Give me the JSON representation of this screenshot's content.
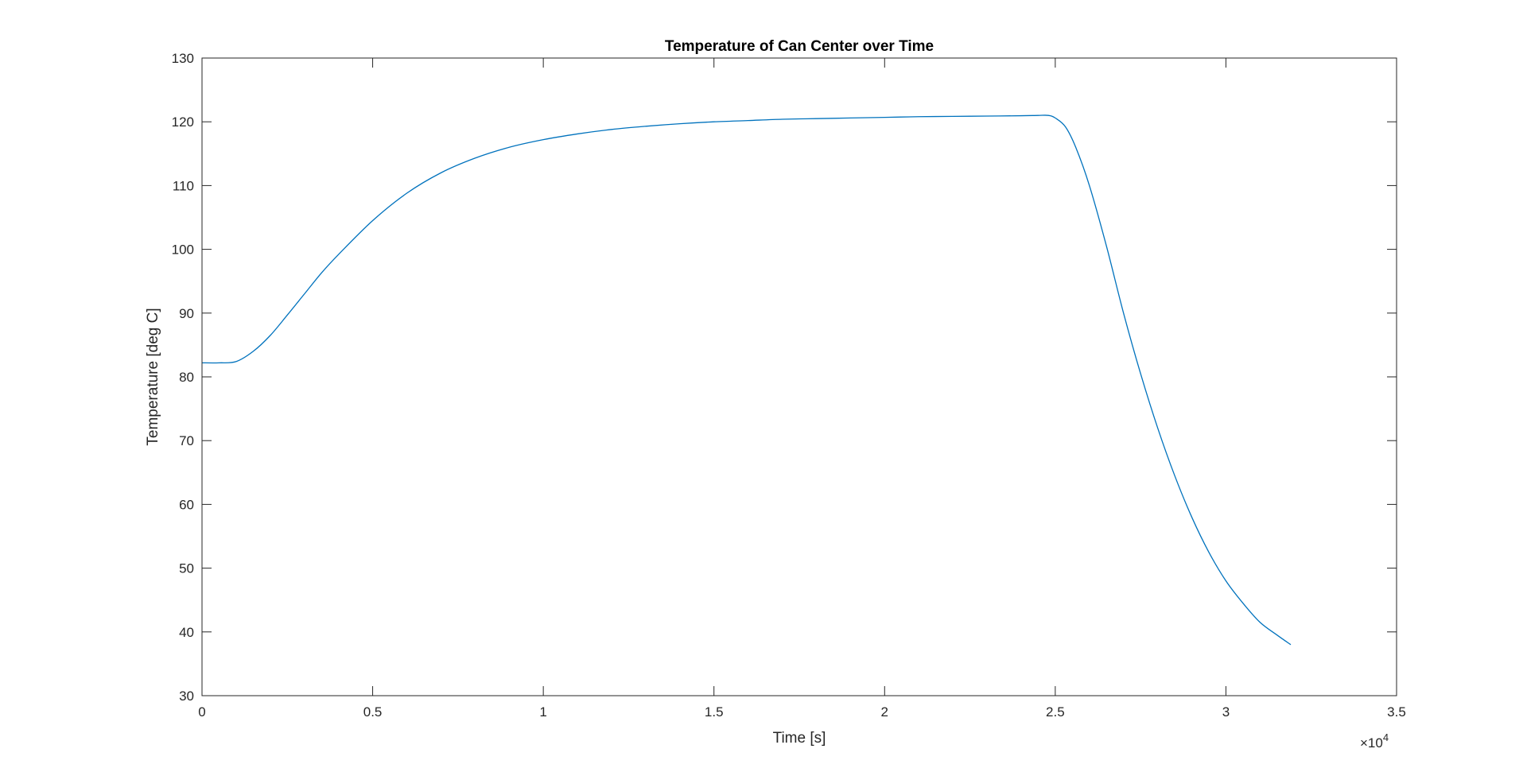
{
  "chart_data": {
    "type": "line",
    "title": "Temperature of Can Center over Time",
    "xlabel": "Time [s]",
    "ylabel": "Temperature [deg C]",
    "xlim": [
      0,
      35000
    ],
    "ylim": [
      30,
      130
    ],
    "x_ticks": [
      0,
      5000,
      10000,
      15000,
      20000,
      25000,
      30000,
      35000
    ],
    "x_tick_labels": [
      "0",
      "0.5",
      "1",
      "1.5",
      "2",
      "2.5",
      "3",
      "3.5"
    ],
    "x_exponent_base": "×10",
    "x_exponent_power": "4",
    "y_ticks": [
      30,
      40,
      50,
      60,
      70,
      80,
      90,
      100,
      110,
      120,
      130
    ],
    "y_tick_labels": [
      "30",
      "40",
      "50",
      "60",
      "70",
      "80",
      "90",
      "100",
      "110",
      "120",
      "130"
    ],
    "grid": false,
    "box": true,
    "line_color": "#0072BD",
    "series": [
      {
        "x": [
          0,
          500,
          1000,
          1500,
          2000,
          2500,
          3000,
          3500,
          4000,
          5000,
          6000,
          7000,
          8000,
          9000,
          10000,
          11000,
          12000,
          13000,
          14000,
          15000,
          16000,
          17000,
          18000,
          19000,
          20000,
          21000,
          22000,
          23000,
          24000,
          24500,
          24800,
          25000,
          25300,
          25600,
          26000,
          26500,
          27000,
          27500,
          28000,
          28500,
          29000,
          29500,
          30000,
          30500,
          31000,
          31500,
          31900
        ],
        "y": [
          82.2,
          82.2,
          82.4,
          84.0,
          86.5,
          89.7,
          93.0,
          96.3,
          99.2,
          104.5,
          108.8,
          112.0,
          114.3,
          116.0,
          117.2,
          118.1,
          118.8,
          119.3,
          119.7,
          120.0,
          120.2,
          120.4,
          120.5,
          120.6,
          120.7,
          120.8,
          120.85,
          120.9,
          120.95,
          121.0,
          121.0,
          120.6,
          119.2,
          116.0,
          110.0,
          100.5,
          90.0,
          80.5,
          72.0,
          64.5,
          58.0,
          52.5,
          48.0,
          44.5,
          41.5,
          39.5,
          38.0
        ]
      }
    ]
  }
}
